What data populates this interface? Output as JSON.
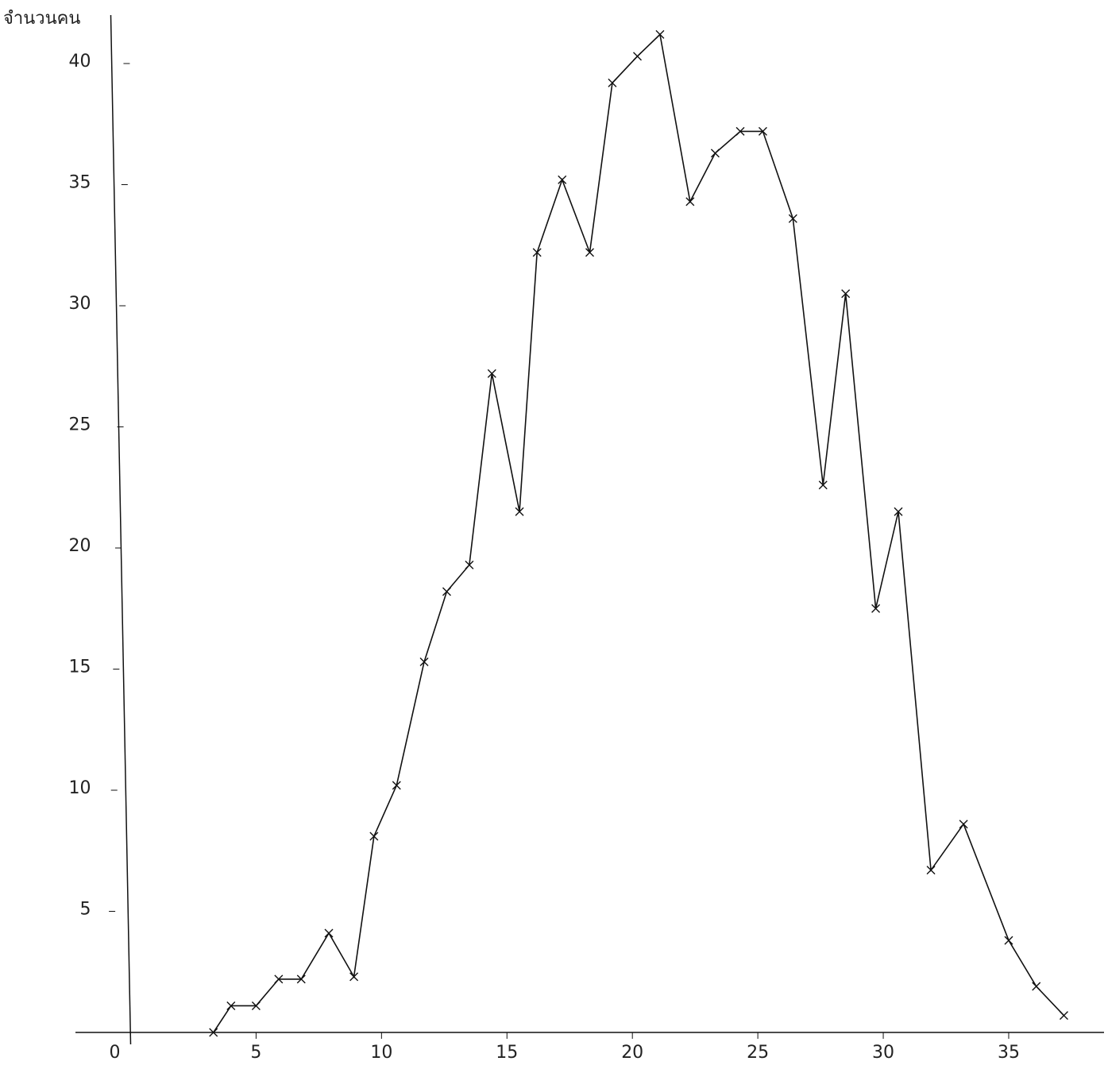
{
  "chart_data": {
    "type": "line",
    "y_label": "จำนวนคน",
    "x": [
      3.3,
      4.0,
      5.0,
      5.9,
      6.8,
      7.9,
      8.9,
      9.7,
      10.6,
      11.7,
      12.6,
      13.5,
      14.4,
      15.5,
      16.2,
      17.2,
      18.3,
      19.2,
      20.2,
      21.1,
      22.3,
      23.3,
      24.3,
      25.2,
      26.4,
      27.6,
      28.5,
      29.7,
      30.6,
      31.9,
      33.2,
      35.0,
      36.1,
      37.2
    ],
    "series": [
      {
        "color": "#111111",
        "values": [
          0,
          1.1,
          1.1,
          2.2,
          2.2,
          4.1,
          2.3,
          8.1,
          10.2,
          15.3,
          18.2,
          19.3,
          27.2,
          21.5,
          32.2,
          35.2,
          32.2,
          39.2,
          40.3,
          41.2,
          34.3,
          36.3,
          37.2,
          37.2,
          33.6,
          22.6,
          30.5,
          17.5,
          21.5,
          6.7,
          8.6,
          3.8,
          1.9,
          0.7
        ]
      }
    ],
    "xlim": [
      -2.2,
      38.8
    ],
    "ylim": [
      0,
      42
    ],
    "xticks": [
      0,
      5,
      10,
      15,
      20,
      25,
      30,
      35
    ],
    "yticks": [
      5,
      10,
      15,
      20,
      25,
      30,
      35,
      40
    ],
    "markers": true
  }
}
